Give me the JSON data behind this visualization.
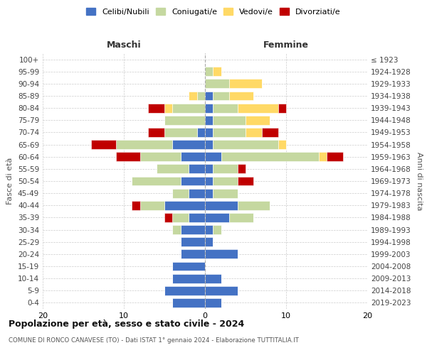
{
  "age_groups": [
    "0-4",
    "5-9",
    "10-14",
    "15-19",
    "20-24",
    "25-29",
    "30-34",
    "35-39",
    "40-44",
    "45-49",
    "50-54",
    "55-59",
    "60-64",
    "65-69",
    "70-74",
    "75-79",
    "80-84",
    "85-89",
    "90-94",
    "95-99",
    "100+"
  ],
  "birth_years": [
    "2019-2023",
    "2014-2018",
    "2009-2013",
    "2004-2008",
    "1999-2003",
    "1994-1998",
    "1989-1993",
    "1984-1988",
    "1979-1983",
    "1974-1978",
    "1969-1973",
    "1964-1968",
    "1959-1963",
    "1954-1958",
    "1949-1953",
    "1944-1948",
    "1939-1943",
    "1934-1938",
    "1929-1933",
    "1924-1928",
    "≤ 1923"
  ],
  "colors": {
    "celibi": "#4472c4",
    "coniugati": "#c5d8a0",
    "vedovi": "#ffd966",
    "divorziati": "#c00000"
  },
  "males": {
    "celibi": [
      4,
      5,
      4,
      4,
      3,
      3,
      3,
      2,
      5,
      2,
      3,
      2,
      3,
      4,
      1,
      0,
      0,
      0,
      0,
      0,
      0
    ],
    "coniugati": [
      0,
      0,
      0,
      0,
      0,
      0,
      1,
      2,
      3,
      2,
      6,
      4,
      5,
      7,
      4,
      5,
      4,
      1,
      0,
      0,
      0
    ],
    "vedovi": [
      0,
      0,
      0,
      0,
      0,
      0,
      0,
      0,
      0,
      0,
      0,
      0,
      0,
      0,
      0,
      0,
      1,
      1,
      0,
      0,
      0
    ],
    "divorziati": [
      0,
      0,
      0,
      0,
      0,
      0,
      0,
      1,
      1,
      0,
      0,
      0,
      3,
      3,
      2,
      0,
      2,
      0,
      0,
      0,
      0
    ]
  },
  "females": {
    "celibi": [
      2,
      4,
      2,
      0,
      4,
      1,
      1,
      3,
      4,
      1,
      1,
      1,
      2,
      1,
      1,
      1,
      1,
      1,
      0,
      0,
      0
    ],
    "coniugati": [
      0,
      0,
      0,
      0,
      0,
      0,
      1,
      3,
      4,
      3,
      3,
      3,
      12,
      8,
      4,
      4,
      3,
      2,
      3,
      1,
      0
    ],
    "vedovi": [
      0,
      0,
      0,
      0,
      0,
      0,
      0,
      0,
      0,
      0,
      0,
      0,
      1,
      1,
      2,
      3,
      5,
      3,
      4,
      1,
      0
    ],
    "divorziati": [
      0,
      0,
      0,
      0,
      0,
      0,
      0,
      0,
      0,
      0,
      2,
      1,
      2,
      0,
      2,
      0,
      1,
      0,
      0,
      0,
      0
    ]
  },
  "title": "Popolazione per età, sesso e stato civile - 2024",
  "subtitle": "COMUNE DI RONCO CANAVESE (TO) - Dati ISTAT 1° gennaio 2024 - Elaborazione TUTTITALIA.IT",
  "xlabel_left": "Maschi",
  "xlabel_right": "Femmine",
  "ylabel_left": "Fasce di età",
  "ylabel_right": "Anni di nascita",
  "legend_labels": [
    "Celibi/Nubili",
    "Coniugati/e",
    "Vedovi/e",
    "Divorziati/e"
  ],
  "xlim": 20,
  "bg_color": "#ffffff",
  "grid_color": "#cccccc"
}
